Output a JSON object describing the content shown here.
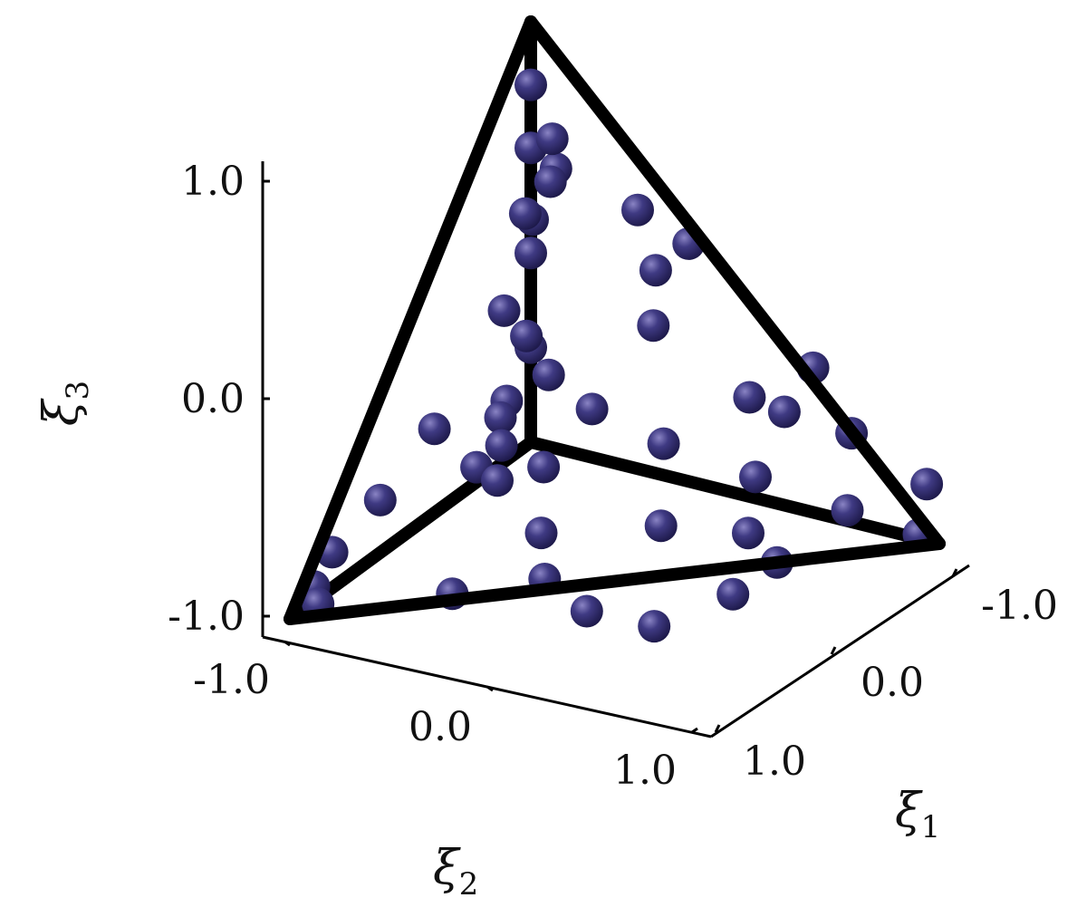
{
  "chart_data": {
    "type": "scatter",
    "projection": "3d",
    "title": "",
    "axes": {
      "x1": {
        "label": "ξ",
        "label_sub": "1",
        "ticks": [
          "-1.0",
          "0.0",
          "1.0"
        ],
        "range": [
          -1,
          1
        ]
      },
      "x2": {
        "label": "ξ",
        "label_sub": "2",
        "ticks": [
          "-1.0",
          "0.0",
          "1.0"
        ],
        "range": [
          -1,
          1
        ]
      },
      "x3": {
        "label": "ξ",
        "label_sub": "3",
        "ticks": [
          "1.0",
          "0.0",
          "-1.0"
        ],
        "range": [
          -1,
          1
        ]
      }
    },
    "reference_tetrahedron": {
      "vertices": [
        [
          -1,
          -1,
          -1
        ],
        [
          1,
          -1,
          -1
        ],
        [
          -1,
          1,
          -1
        ],
        [
          -1,
          -1,
          1
        ]
      ],
      "edge_color": "#000000"
    },
    "marker_color": "#2f2a6b",
    "points": [
      [
        -1.0,
        -1.0,
        0.7
      ],
      [
        -1.0,
        -1.0,
        0.4
      ],
      [
        -1.0,
        -1.0,
        -0.1
      ],
      [
        -1.0,
        -1.0,
        -0.55
      ],
      [
        -0.95,
        -0.93,
        0.1
      ],
      [
        -0.83,
        -0.86,
        -0.58
      ],
      [
        -1.0,
        -0.8,
        -0.72
      ],
      [
        -1.0,
        -0.55,
        -0.93
      ],
      [
        -1.0,
        -0.2,
        -0.6
      ],
      [
        -1.0,
        0.25,
        -0.75
      ],
      [
        -1.0,
        0.65,
        -0.83
      ],
      [
        -1.0,
        0.8,
        -0.93
      ],
      [
        -0.95,
        0.85,
        -0.98
      ],
      [
        -0.7,
        -1.0,
        -0.77
      ],
      [
        -0.35,
        -1.0,
        -0.85
      ],
      [
        0.1,
        -1.0,
        -0.9
      ],
      [
        0.55,
        -1.0,
        -0.95
      ],
      [
        0.9,
        -1.0,
        -0.98
      ],
      [
        0.95,
        -0.98,
        -0.72
      ],
      [
        0.6,
        -0.95,
        -0.55
      ],
      [
        0.3,
        -0.9,
        -0.5
      ],
      [
        -0.4,
        -1.0,
        -0.3
      ],
      [
        0.1,
        -0.95,
        -0.5
      ],
      [
        0.5,
        -0.8,
        -0.2
      ],
      [
        0.5,
        -0.5,
        -1.0
      ],
      [
        0.3,
        -0.6,
        -0.95
      ],
      [
        0.05,
        -0.3,
        -0.85
      ],
      [
        0.55,
        -0.05,
        -0.95
      ],
      [
        0.4,
        0.35,
        -0.97
      ],
      [
        -0.5,
        0.5,
        -0.97
      ],
      [
        0.1,
        0.4,
        -0.95
      ],
      [
        -0.3,
        0.1,
        -0.8
      ],
      [
        -0.55,
        -0.4,
        0.6
      ],
      [
        -0.3,
        -0.7,
        0.4
      ],
      [
        -0.6,
        -0.5,
        0.75
      ],
      [
        -0.7,
        -0.7,
        0.5
      ],
      [
        -0.85,
        -0.7,
        0.25
      ],
      [
        -0.3,
        -0.85,
        0.05
      ],
      [
        -0.05,
        -0.7,
        0.3
      ],
      [
        -0.2,
        0.25,
        -0.4
      ],
      [
        -0.25,
        0.55,
        -0.35
      ],
      [
        0.1,
        0.75,
        -0.65
      ],
      [
        -0.2,
        0.6,
        -0.15
      ],
      [
        -0.5,
        0.1,
        -0.3
      ],
      [
        -0.6,
        -0.1,
        0.1
      ],
      [
        -0.55,
        -0.2,
        -0.05
      ]
    ]
  }
}
